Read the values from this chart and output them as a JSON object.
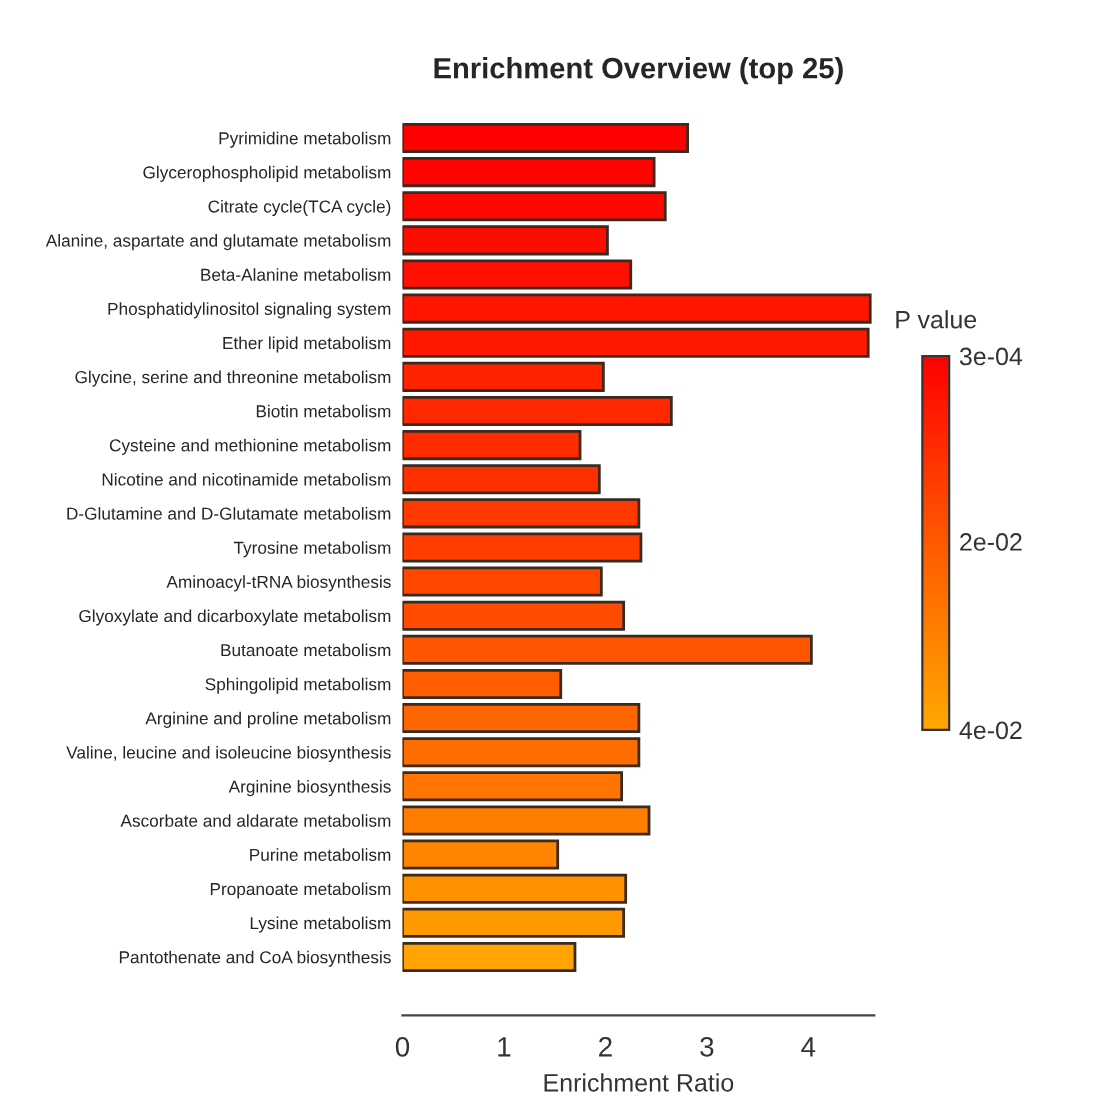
{
  "chart_data": {
    "type": "bar",
    "orientation": "horizontal",
    "title": "Enrichment Overview (top 25)",
    "xlabel": "Enrichment Ratio",
    "clabel": "P value",
    "categories": [
      "Pyrimidine metabolism",
      "Glycerophospholipid metabolism",
      "Citrate cycle(TCA cycle)",
      "Alanine, aspartate and glutamate metabolism",
      "Beta-Alanine metabolism",
      "Phosphatidylinositol signaling system",
      "Ether lipid metabolism",
      "Glycine, serine and threonine metabolism",
      "Biotin metabolism",
      "Cysteine and methionine metabolism",
      "Nicotine and nicotinamide metabolism",
      "D-Glutamine and D-Glutamate metabolism",
      "Tyrosine metabolism",
      "Aminoacyl-tRNA biosynthesis",
      "Glyoxylate and dicarboxylate metabolism",
      "Butanoate metabolism",
      "Sphingolipid metabolism",
      "Arginine and proline metabolism",
      "Valine, leucine and isoleucine biosynthesis",
      "Arginine biosynthesis",
      "Ascorbate and aldarate metabolism",
      "Purine metabolism",
      "Propanoate metabolism",
      "Lysine metabolism",
      "Pantothenate and CoA biosynthesis"
    ],
    "values": [
      2.81,
      2.48,
      2.59,
      2.02,
      2.25,
      4.61,
      4.59,
      1.98,
      2.65,
      1.75,
      1.94,
      2.33,
      2.35,
      1.96,
      2.18,
      4.03,
      1.56,
      2.33,
      2.33,
      2.16,
      2.43,
      1.53,
      2.2,
      2.18,
      1.7
    ],
    "cvalues": [
      0.0003,
      0.001,
      0.002,
      0.003,
      0.004,
      0.005,
      0.006,
      0.008,
      0.009,
      0.01,
      0.011,
      0.013,
      0.014,
      0.016,
      0.017,
      0.019,
      0.021,
      0.023,
      0.025,
      0.027,
      0.029,
      0.031,
      0.034,
      0.036,
      0.039
    ],
    "clim": [
      0.0003,
      0.04
    ],
    "cticks": [
      {
        "value": 0.0003,
        "label": "3e-04"
      },
      {
        "value": 0.02,
        "label": "2e-02"
      },
      {
        "value": 0.04,
        "label": "4e-02"
      }
    ],
    "xlim": [
      0,
      4.65
    ],
    "xticks": [
      0,
      1,
      2,
      3,
      4
    ],
    "grid": false,
    "legend": false
  }
}
